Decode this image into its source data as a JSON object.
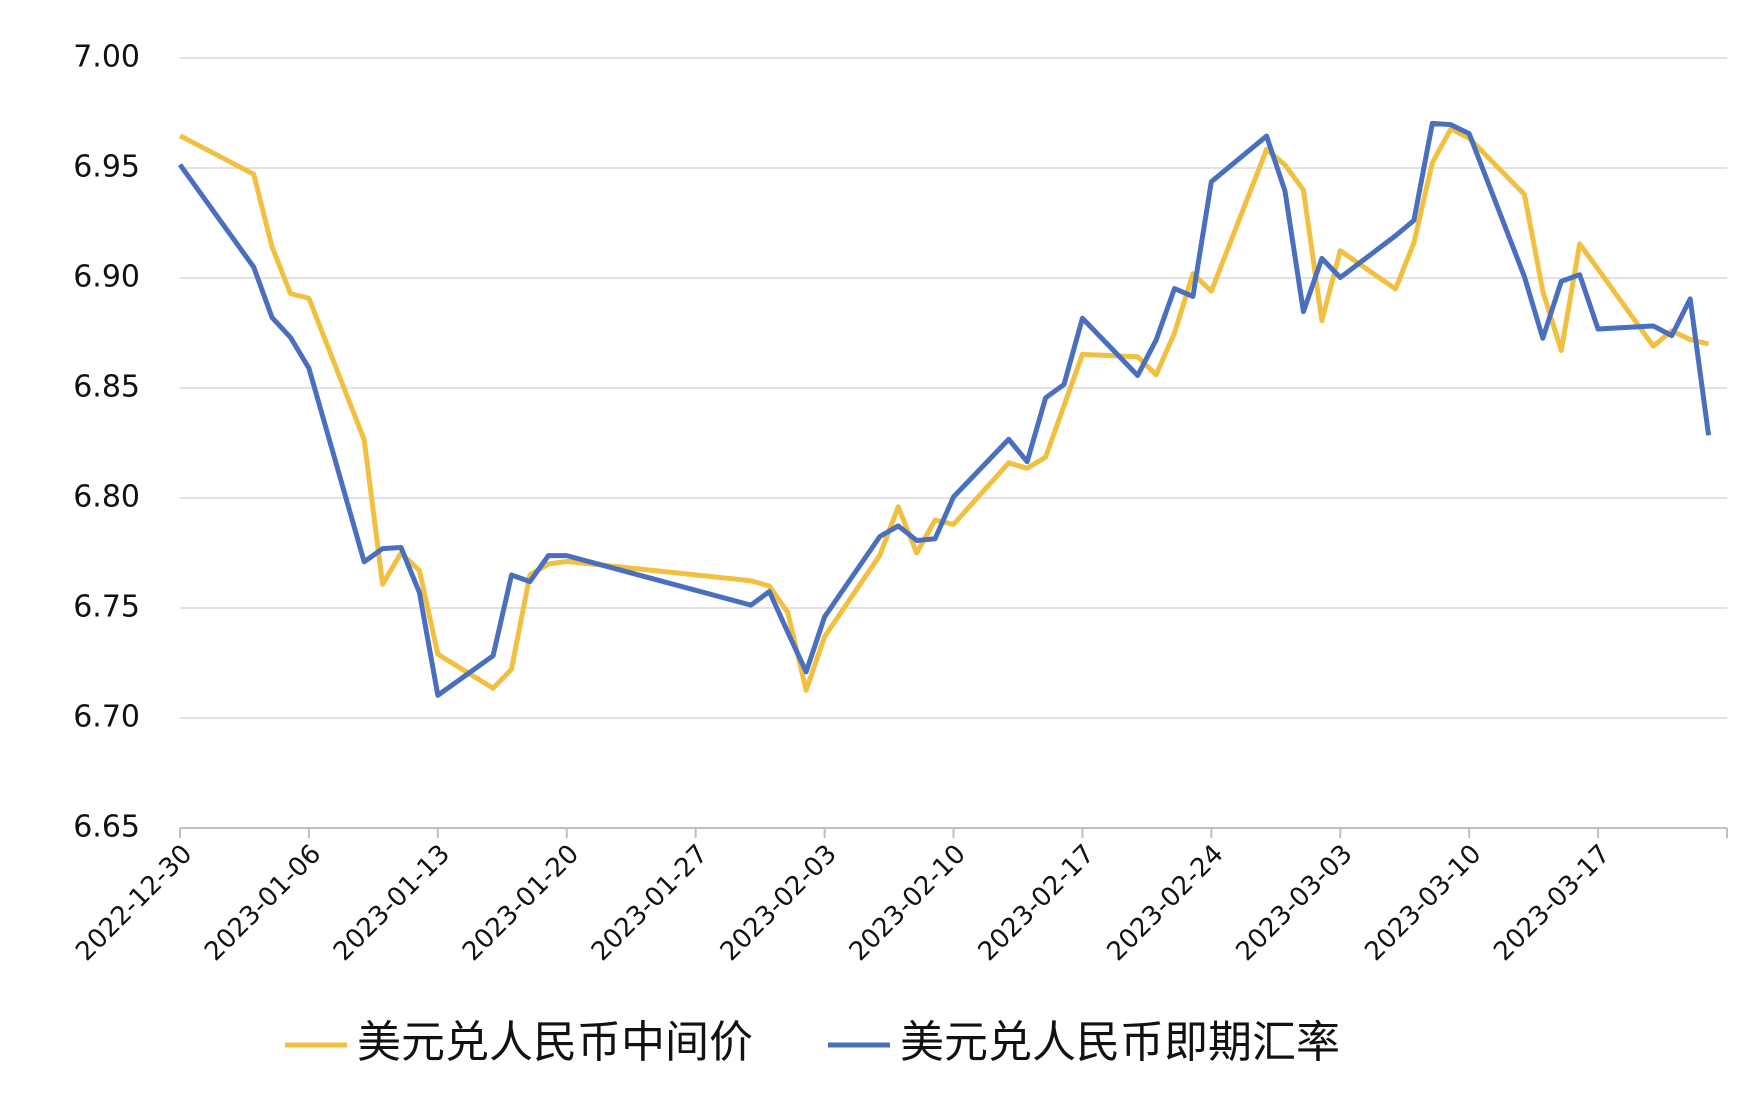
{
  "chart_data": {
    "type": "line",
    "x": [
      "2022-12-30",
      "2023-01-03",
      "2023-01-04",
      "2023-01-05",
      "2023-01-06",
      "2023-01-09",
      "2023-01-10",
      "2023-01-11",
      "2023-01-12",
      "2023-01-13",
      "2023-01-16",
      "2023-01-17",
      "2023-01-18",
      "2023-01-19",
      "2023-01-20",
      "2023-01-30",
      "2023-01-31",
      "2023-02-01",
      "2023-02-02",
      "2023-02-03",
      "2023-02-06",
      "2023-02-07",
      "2023-02-08",
      "2023-02-09",
      "2023-02-10",
      "2023-02-13",
      "2023-02-14",
      "2023-02-15",
      "2023-02-16",
      "2023-02-17",
      "2023-02-20",
      "2023-02-21",
      "2023-02-22",
      "2023-02-23",
      "2023-02-24",
      "2023-02-27",
      "2023-02-28",
      "2023-03-01",
      "2023-03-02",
      "2023-03-03",
      "2023-03-06",
      "2023-03-07",
      "2023-03-08",
      "2023-03-09",
      "2023-03-10",
      "2023-03-13",
      "2023-03-14",
      "2023-03-15",
      "2023-03-16",
      "2023-03-17",
      "2023-03-20",
      "2023-03-21",
      "2023-03-22",
      "2023-03-23"
    ],
    "series": [
      {
        "name": "美元兑人民币中间价",
        "color": "#f2c040",
        "values": [
          6.9647,
          6.9472,
          6.9141,
          6.8929,
          6.8908,
          6.8265,
          6.7608,
          6.775,
          6.767,
          6.729,
          6.7135,
          6.7222,
          6.7651,
          6.77,
          6.7712,
          6.7624,
          6.76,
          6.748,
          6.7126,
          6.737,
          6.774,
          6.796,
          6.775,
          6.79,
          6.788,
          6.816,
          6.8135,
          6.8186,
          6.842,
          6.8653,
          6.8642,
          6.856,
          6.875,
          6.902,
          6.894,
          6.9585,
          6.9514,
          6.94,
          6.8806,
          6.9124,
          6.895,
          6.916,
          6.9524,
          6.9677,
          6.9636,
          6.938,
          6.894,
          6.867,
          6.9155,
          6.904,
          6.869,
          6.876,
          6.872,
          6.87
        ]
      },
      {
        "name": "美元兑人民币即期汇率",
        "color": "#4a6fbf",
        "values": [
          6.9515,
          6.905,
          6.882,
          6.873,
          6.859,
          6.771,
          6.777,
          6.7775,
          6.757,
          6.7103,
          6.7283,
          6.765,
          6.762,
          6.7738,
          6.7738,
          6.7513,
          6.7575,
          6.739,
          6.721,
          6.746,
          6.7825,
          6.7873,
          6.7807,
          6.7815,
          6.8005,
          6.8267,
          6.8165,
          6.8455,
          6.8516,
          6.8817,
          6.8557,
          6.8718,
          6.8952,
          6.8916,
          6.9438,
          6.9645,
          6.9395,
          6.8847,
          6.9089,
          6.9002,
          6.9192,
          6.9262,
          6.9703,
          6.9697,
          6.9656,
          6.9006,
          6.8726,
          6.8985,
          6.9015,
          6.8768,
          6.8782,
          6.8738,
          6.8905,
          6.8285
        ]
      }
    ],
    "xlim": [
      "2022-12-30",
      "2023-03-24"
    ],
    "xticks": [
      "2022-12-30",
      "2023-01-06",
      "2023-01-13",
      "2023-01-20",
      "2023-01-27",
      "2023-02-03",
      "2023-02-10",
      "2023-02-17",
      "2023-02-24",
      "2023-03-03",
      "2023-03-10",
      "2023-03-17"
    ],
    "ylim": [
      6.65,
      7
    ],
    "yticks": [
      {
        "value": 6.65,
        "label": "6.65"
      },
      {
        "value": 6.7,
        "label": "6.70"
      },
      {
        "value": 6.75,
        "label": "6.75"
      },
      {
        "value": 6.8,
        "label": "6.80"
      },
      {
        "value": 6.85,
        "label": "6.85"
      },
      {
        "value": 6.9,
        "label": "6.90"
      },
      {
        "value": 6.95,
        "label": "6.95"
      },
      {
        "value": 7,
        "label": "7.00"
      }
    ],
    "grid": true,
    "legend": "bottom"
  }
}
